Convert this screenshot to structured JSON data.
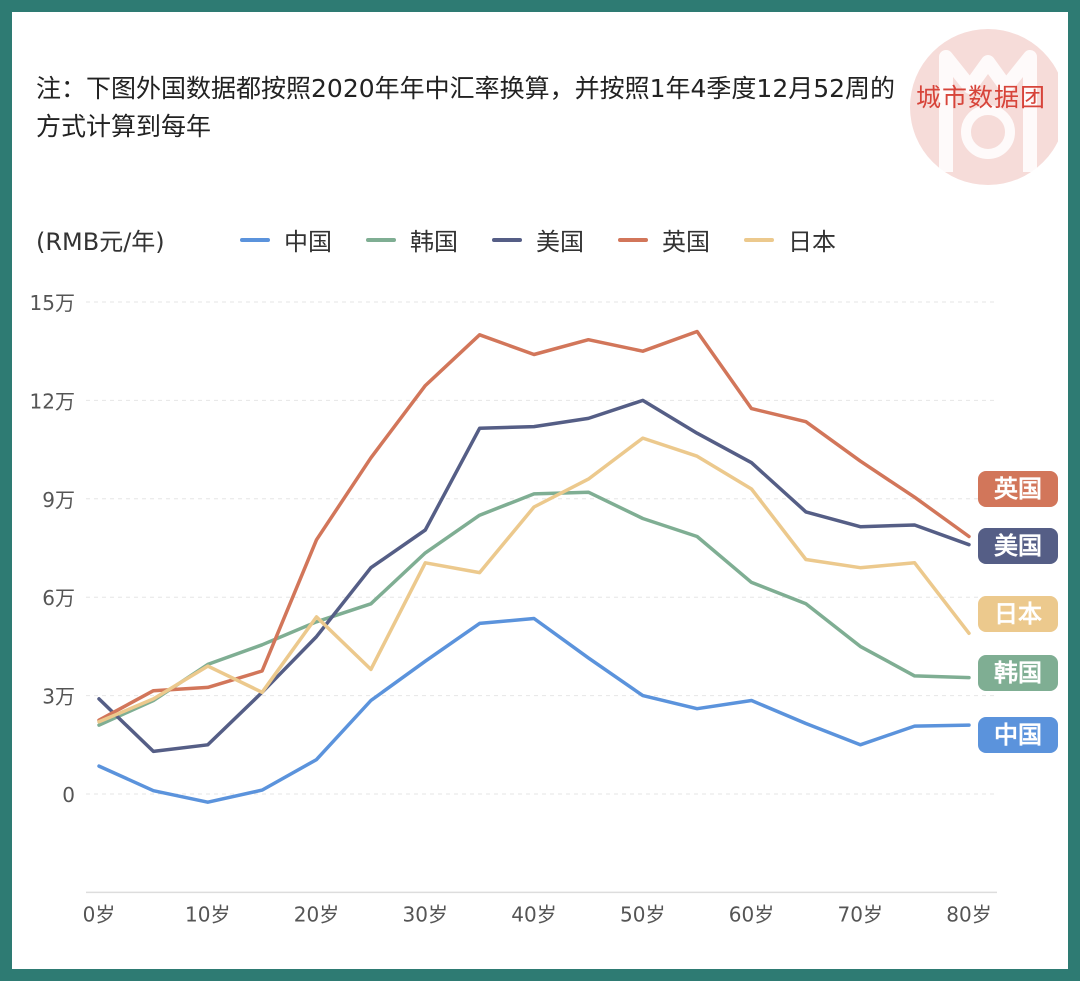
{
  "note": "注：下图外国数据都按照2020年年中汇率换算，并按照1年4季度12月52周的方式计算到每年",
  "brand": "城市数据团",
  "unit_label": "(RMB元/年)",
  "colors": {
    "中国": "#5b93dc",
    "韩国": "#7fae93",
    "美国": "#555e86",
    "英国": "#d2765a",
    "日本": "#ecc98d"
  },
  "chart_data": {
    "type": "line",
    "ylim": [
      -3,
      15
    ],
    "yticks": [
      0,
      3,
      6,
      9,
      12,
      15
    ],
    "ytick_labels": [
      "0",
      "3万",
      "6万",
      "9万",
      "12万",
      "15万"
    ],
    "x": [
      0,
      5,
      10,
      15,
      20,
      25,
      30,
      35,
      40,
      45,
      50,
      55,
      60,
      65,
      70,
      75,
      80
    ],
    "xticks": [
      0,
      10,
      20,
      30,
      40,
      50,
      60,
      70,
      80
    ],
    "xtick_labels": [
      "0岁",
      "10岁",
      "20岁",
      "30岁",
      "40岁",
      "50岁",
      "60岁",
      "70岁",
      "80岁"
    ],
    "grid": true,
    "legend": "top",
    "series": [
      {
        "name": "中国",
        "values": [
          0.85,
          0.1,
          -0.25,
          0.12,
          1.05,
          2.85,
          4.05,
          5.2,
          5.35,
          4.15,
          3.0,
          2.6,
          2.85,
          2.15,
          1.5,
          2.07,
          2.1
        ]
      },
      {
        "name": "韩国",
        "values": [
          2.1,
          2.85,
          3.95,
          4.55,
          5.25,
          5.8,
          7.35,
          8.5,
          9.15,
          9.2,
          8.4,
          7.85,
          6.45,
          5.8,
          4.5,
          3.6,
          3.55
        ]
      },
      {
        "name": "美国",
        "values": [
          2.9,
          1.3,
          1.5,
          3.1,
          4.8,
          6.9,
          8.05,
          11.15,
          11.2,
          11.45,
          12.0,
          11.0,
          10.1,
          8.6,
          8.15,
          8.2,
          7.6
        ]
      },
      {
        "name": "英国",
        "values": [
          2.25,
          3.15,
          3.25,
          3.75,
          7.75,
          10.25,
          12.45,
          14.0,
          13.4,
          13.85,
          13.5,
          14.1,
          11.75,
          11.35,
          10.15,
          9.05,
          7.85
        ]
      },
      {
        "name": "日本",
        "values": [
          2.2,
          2.9,
          3.9,
          3.1,
          5.4,
          3.8,
          7.05,
          6.75,
          8.75,
          9.6,
          10.85,
          10.3,
          9.3,
          7.15,
          6.9,
          7.05,
          4.9
        ]
      }
    ],
    "end_labels": [
      {
        "name": "英国",
        "value": 9.3
      },
      {
        "name": "美国",
        "value": 7.55
      },
      {
        "name": "日本",
        "value": 5.5
      },
      {
        "name": "韩国",
        "value": 3.7
      },
      {
        "name": "中国",
        "value": 1.8
      }
    ]
  }
}
